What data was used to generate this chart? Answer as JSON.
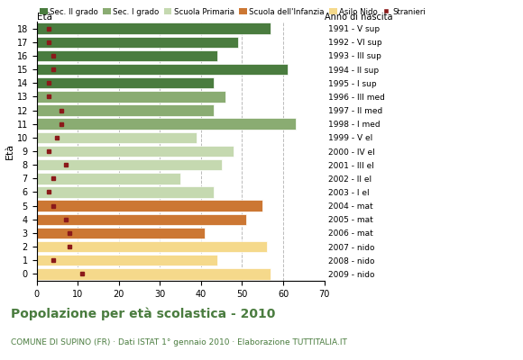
{
  "ages": [
    18,
    17,
    16,
    15,
    14,
    13,
    12,
    11,
    10,
    9,
    8,
    7,
    6,
    5,
    4,
    3,
    2,
    1,
    0
  ],
  "bar_values": [
    57,
    49,
    44,
    61,
    43,
    46,
    43,
    63,
    39,
    48,
    45,
    35,
    43,
    55,
    51,
    41,
    56,
    44,
    57
  ],
  "stranieri": [
    3,
    3,
    4,
    4,
    3,
    3,
    6,
    6,
    5,
    3,
    7,
    4,
    3,
    4,
    7,
    8,
    8,
    4,
    11
  ],
  "anno_labels": [
    "1991 - V sup",
    "1992 - VI sup",
    "1993 - III sup",
    "1994 - II sup",
    "1995 - I sup",
    "1996 - III med",
    "1997 - II med",
    "1998 - I med",
    "1999 - V el",
    "2000 - IV el",
    "2001 - III el",
    "2002 - II el",
    "2003 - I el",
    "2004 - mat",
    "2005 - mat",
    "2006 - mat",
    "2007 - nido",
    "2008 - nido",
    "2009 - nido"
  ],
  "color_by_age": {
    "18": "#4a7c3f",
    "17": "#4a7c3f",
    "16": "#4a7c3f",
    "15": "#4a7c3f",
    "14": "#4a7c3f",
    "13": "#8aac72",
    "12": "#8aac72",
    "11": "#8aac72",
    "10": "#c5d9b0",
    "9": "#c5d9b0",
    "8": "#c5d9b0",
    "7": "#c5d9b0",
    "6": "#c5d9b0",
    "5": "#cc7733",
    "4": "#cc7733",
    "3": "#cc7733",
    "2": "#f5d98b",
    "1": "#f5d98b",
    "0": "#f5d98b"
  },
  "stranieri_color": "#8b1a1a",
  "title": "Popolazione per età scolastica - 2010",
  "title_color": "#4a7c3f",
  "subtitle": "COMUNE DI SUPINO (FR) · Dati ISTAT 1° gennaio 2010 · Elaborazione TUTTITALIA.IT",
  "subtitle_color": "#4a7c3f",
  "ylabel": "Età",
  "right_ylabel": "Anno di nascita",
  "xlim": [
    0,
    70
  ],
  "xticks": [
    0,
    10,
    20,
    30,
    40,
    50,
    60,
    70
  ],
  "legend_labels": [
    "Sec. II grado",
    "Sec. I grado",
    "Scuola Primaria",
    "Scuola dell'Infanzia",
    "Asilo Nido",
    "Stranieri"
  ],
  "legend_colors": [
    "#4a7c3f",
    "#8aac72",
    "#c5d9b0",
    "#cc7733",
    "#f5d98b",
    "#8b1a1a"
  ],
  "grid_color": "#aaaaaa",
  "bg_color": "#ffffff",
  "bar_height": 0.82
}
